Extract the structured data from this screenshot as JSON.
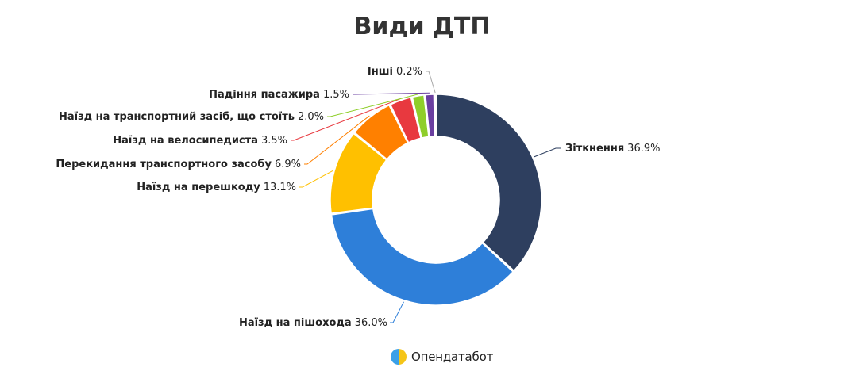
{
  "chart_data": {
    "type": "pie",
    "variant": "donut",
    "title": "Види ДТП",
    "slices": [
      {
        "label": "Зіткнення",
        "value": 36.9,
        "value_text": "36.9%",
        "color": "#2e3f5f"
      },
      {
        "label": "Наїзд на пішохода",
        "value": 36.0,
        "value_text": "36.0%",
        "color": "#2e7fd9"
      },
      {
        "label": "Наїзд на перешкоду",
        "value": 13.1,
        "value_text": "13.1%",
        "color": "#ffc000"
      },
      {
        "label": "Перекидання транспортного засобу",
        "value": 6.9,
        "value_text": "6.9%",
        "color": "#ff8000"
      },
      {
        "label": "Наїзд на велосипедиста",
        "value": 3.5,
        "value_text": "3.5%",
        "color": "#e8393f"
      },
      {
        "label": "Наїзд на транспортний засіб, що стоїть",
        "value": 2.0,
        "value_text": "2.0%",
        "color": "#8fce2a"
      },
      {
        "label": "Падіння пасажира",
        "value": 1.5,
        "value_text": "1.5%",
        "color": "#6a3fa0"
      },
      {
        "label": "Інші",
        "value": 0.2,
        "value_text": "0.2%",
        "color": "#a8a8a8"
      }
    ]
  },
  "brand": {
    "name": "Опендатабот",
    "logo_icon": "opendatabot-logo-icon"
  }
}
